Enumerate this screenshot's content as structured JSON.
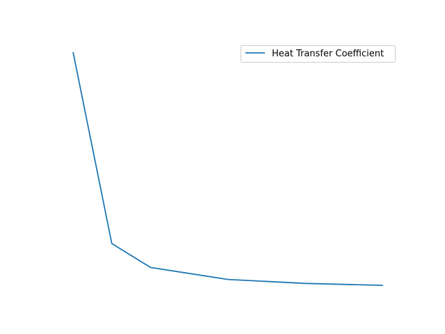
{
  "chart_data": {
    "type": "line",
    "title": "",
    "xlabel": "",
    "ylabel": "",
    "axes_visible": false,
    "grid": false,
    "legend_position": "top-right",
    "series": [
      {
        "name": "Heat Transfer Coefficient",
        "color": "#1f77b4",
        "x": [
          1,
          2,
          3,
          5,
          7,
          9
        ],
        "y": [
          100,
          20,
          10,
          5,
          3.33,
          2.5
        ]
      }
    ],
    "xlim": [
      0.55,
      9.45
    ],
    "ylim": [
      -2.4,
      104.9
    ]
  }
}
